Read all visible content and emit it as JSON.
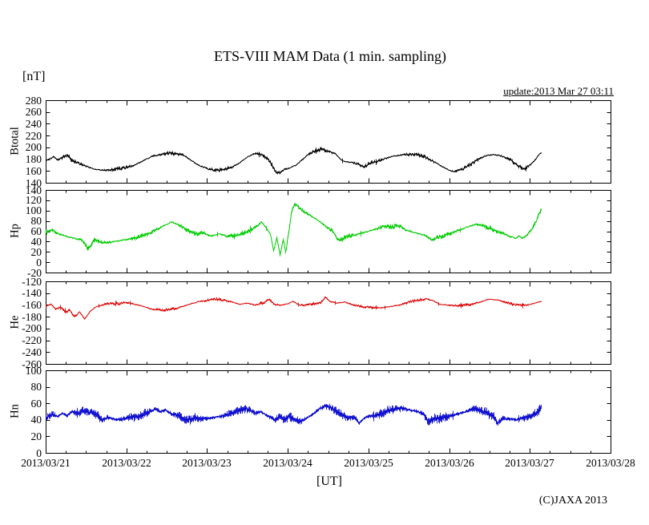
{
  "page": {
    "title": "ETS-VIII MAM Data (1 min. sampling)",
    "unit_label": "[nT]",
    "update_label": "update:2013 Mar 27 03:11",
    "x_axis_label": "[UT]",
    "copyright": "(C)JAXA 2013"
  },
  "chart_data": {
    "type": "line",
    "title": "ETS-VIII MAM Data (1 min. sampling)",
    "xlabel": "[UT]",
    "y_unit": "[nT]",
    "update": "update:2013 Mar 27 03:11",
    "grid": false,
    "x_tick_labels": [
      "2013/03/21",
      "2013/03/22",
      "2013/03/23",
      "2013/03/24",
      "2013/03/25",
      "2013/03/26",
      "2013/03/27",
      "2013/03/28"
    ],
    "x_range_days": [
      0,
      7
    ],
    "x_minor_tick_days": 0.25,
    "data_end_day": 6.132,
    "panels": [
      {
        "name": "Btotal",
        "color": "#000000",
        "ylim": [
          140,
          280
        ],
        "ytick_step": 20,
        "keypoints": [
          [
            0,
            178
          ],
          [
            0.05,
            181
          ],
          [
            0.1,
            184
          ],
          [
            0.15,
            178
          ],
          [
            0.22,
            184
          ],
          [
            0.28,
            186
          ],
          [
            0.33,
            176
          ],
          [
            0.4,
            173
          ],
          [
            0.5,
            168
          ],
          [
            0.6,
            163
          ],
          [
            0.7,
            161
          ],
          [
            0.8,
            162
          ],
          [
            0.9,
            164
          ],
          [
            1,
            166
          ],
          [
            1.1,
            170
          ],
          [
            1.2,
            177
          ],
          [
            1.3,
            184
          ],
          [
            1.4,
            188
          ],
          [
            1.5,
            190
          ],
          [
            1.6,
            189
          ],
          [
            1.7,
            187
          ],
          [
            1.8,
            178
          ],
          [
            1.9,
            169
          ],
          [
            2,
            164
          ],
          [
            2.1,
            161
          ],
          [
            2.2,
            162
          ],
          [
            2.3,
            166
          ],
          [
            2.4,
            174
          ],
          [
            2.5,
            184
          ],
          [
            2.6,
            190
          ],
          [
            2.7,
            186
          ],
          [
            2.75,
            180
          ],
          [
            2.8,
            170
          ],
          [
            2.85,
            159
          ],
          [
            2.9,
            156
          ],
          [
            2.95,
            163
          ],
          [
            3,
            164
          ],
          [
            3.1,
            170
          ],
          [
            3.2,
            182
          ],
          [
            3.3,
            192
          ],
          [
            3.4,
            197
          ],
          [
            3.5,
            193
          ],
          [
            3.6,
            188
          ],
          [
            3.65,
            179
          ],
          [
            3.7,
            176
          ],
          [
            3.8,
            174
          ],
          [
            3.9,
            170
          ],
          [
            3.95,
            167
          ],
          [
            4,
            172
          ],
          [
            4.1,
            176
          ],
          [
            4.2,
            181
          ],
          [
            4.3,
            185
          ],
          [
            4.45,
            188
          ],
          [
            4.6,
            187
          ],
          [
            4.7,
            184
          ],
          [
            4.8,
            176
          ],
          [
            4.9,
            168
          ],
          [
            5,
            161
          ],
          [
            5.05,
            159
          ],
          [
            5.15,
            162
          ],
          [
            5.25,
            170
          ],
          [
            5.35,
            179
          ],
          [
            5.45,
            186
          ],
          [
            5.55,
            188
          ],
          [
            5.65,
            185
          ],
          [
            5.75,
            180
          ],
          [
            5.85,
            168
          ],
          [
            5.92,
            163
          ],
          [
            6,
            170
          ],
          [
            6.05,
            177
          ],
          [
            6.1,
            186
          ],
          [
            6.13,
            191
          ]
        ]
      },
      {
        "name": "Hp",
        "color": "#00cc00",
        "ylim": [
          -20,
          140
        ],
        "ytick_step": 20,
        "keypoints": [
          [
            0,
            58
          ],
          [
            0.07,
            62
          ],
          [
            0.15,
            55
          ],
          [
            0.3,
            48
          ],
          [
            0.45,
            43
          ],
          [
            0.52,
            26
          ],
          [
            0.6,
            44
          ],
          [
            0.72,
            38
          ],
          [
            0.85,
            40
          ],
          [
            1,
            44
          ],
          [
            1.15,
            48
          ],
          [
            1.3,
            58
          ],
          [
            1.45,
            70
          ],
          [
            1.55,
            78
          ],
          [
            1.65,
            72
          ],
          [
            1.75,
            62
          ],
          [
            1.85,
            55
          ],
          [
            1.95,
            57
          ],
          [
            2.05,
            51
          ],
          [
            2.15,
            55
          ],
          [
            2.25,
            50
          ],
          [
            2.35,
            52
          ],
          [
            2.45,
            56
          ],
          [
            2.55,
            63
          ],
          [
            2.62,
            70
          ],
          [
            2.67,
            78
          ],
          [
            2.72,
            68
          ],
          [
            2.78,
            55
          ],
          [
            2.82,
            22
          ],
          [
            2.86,
            48
          ],
          [
            2.9,
            14
          ],
          [
            2.94,
            44
          ],
          [
            2.97,
            18
          ],
          [
            3,
            50
          ],
          [
            3.04,
            95
          ],
          [
            3.08,
            113
          ],
          [
            3.15,
            103
          ],
          [
            3.25,
            93
          ],
          [
            3.35,
            83
          ],
          [
            3.45,
            72
          ],
          [
            3.55,
            60
          ],
          [
            3.62,
            42
          ],
          [
            3.7,
            48
          ],
          [
            3.8,
            52
          ],
          [
            3.9,
            56
          ],
          [
            4,
            60
          ],
          [
            4.1,
            65
          ],
          [
            4.2,
            70
          ],
          [
            4.3,
            68
          ],
          [
            4.36,
            72
          ],
          [
            4.45,
            63
          ],
          [
            4.55,
            58
          ],
          [
            4.65,
            54
          ],
          [
            4.72,
            50
          ],
          [
            4.78,
            43
          ],
          [
            4.85,
            48
          ],
          [
            4.95,
            52
          ],
          [
            5.05,
            58
          ],
          [
            5.15,
            64
          ],
          [
            5.25,
            70
          ],
          [
            5.35,
            74
          ],
          [
            5.45,
            69
          ],
          [
            5.55,
            62
          ],
          [
            5.65,
            56
          ],
          [
            5.75,
            50
          ],
          [
            5.82,
            46
          ],
          [
            5.86,
            51
          ],
          [
            5.9,
            46
          ],
          [
            5.97,
            54
          ],
          [
            6.03,
            66
          ],
          [
            6.08,
            82
          ],
          [
            6.11,
            95
          ],
          [
            6.13,
            100
          ]
        ]
      },
      {
        "name": "He",
        "color": "#dd0000",
        "ylim": [
          -260,
          -120
        ],
        "ytick_step": 20,
        "keypoints": [
          [
            0,
            -162
          ],
          [
            0.06,
            -159
          ],
          [
            0.12,
            -167
          ],
          [
            0.18,
            -164
          ],
          [
            0.25,
            -172
          ],
          [
            0.3,
            -169
          ],
          [
            0.35,
            -180
          ],
          [
            0.42,
            -172
          ],
          [
            0.48,
            -184
          ],
          [
            0.55,
            -170
          ],
          [
            0.62,
            -163
          ],
          [
            0.7,
            -160
          ],
          [
            0.8,
            -157
          ],
          [
            0.9,
            -158
          ],
          [
            1,
            -156
          ],
          [
            1.1,
            -159
          ],
          [
            1.2,
            -162
          ],
          [
            1.3,
            -167
          ],
          [
            1.45,
            -169
          ],
          [
            1.6,
            -166
          ],
          [
            1.7,
            -162
          ],
          [
            1.8,
            -158
          ],
          [
            1.9,
            -154
          ],
          [
            2,
            -152
          ],
          [
            2.1,
            -150
          ],
          [
            2.2,
            -152
          ],
          [
            2.3,
            -155
          ],
          [
            2.4,
            -159
          ],
          [
            2.5,
            -157
          ],
          [
            2.6,
            -160
          ],
          [
            2.7,
            -156
          ],
          [
            2.76,
            -151
          ],
          [
            2.82,
            -158
          ],
          [
            2.9,
            -161
          ],
          [
            3,
            -158
          ],
          [
            3.06,
            -154
          ],
          [
            3.12,
            -159
          ],
          [
            3.2,
            -161
          ],
          [
            3.3,
            -159
          ],
          [
            3.4,
            -157
          ],
          [
            3.46,
            -146
          ],
          [
            3.52,
            -154
          ],
          [
            3.6,
            -157
          ],
          [
            3.7,
            -155
          ],
          [
            3.78,
            -159
          ],
          [
            3.88,
            -162
          ],
          [
            4,
            -164
          ],
          [
            4.1,
            -165
          ],
          [
            4.2,
            -164
          ],
          [
            4.3,
            -162
          ],
          [
            4.4,
            -159
          ],
          [
            4.5,
            -155
          ],
          [
            4.6,
            -152
          ],
          [
            4.72,
            -150
          ],
          [
            4.8,
            -153
          ],
          [
            4.88,
            -159
          ],
          [
            5,
            -161
          ],
          [
            5.1,
            -161
          ],
          [
            5.2,
            -160
          ],
          [
            5.3,
            -158
          ],
          [
            5.4,
            -154
          ],
          [
            5.5,
            -150
          ],
          [
            5.6,
            -152
          ],
          [
            5.7,
            -156
          ],
          [
            5.8,
            -159
          ],
          [
            5.9,
            -161
          ],
          [
            6,
            -159
          ],
          [
            6.06,
            -157
          ],
          [
            6.13,
            -154
          ]
        ]
      },
      {
        "name": "Hn",
        "color": "#0000cc",
        "ylim": [
          0,
          100
        ],
        "ytick_step": 20,
        "keypoints": [
          [
            0,
            42
          ],
          [
            0.08,
            47
          ],
          [
            0.14,
            44
          ],
          [
            0.2,
            48
          ],
          [
            0.26,
            45
          ],
          [
            0.32,
            50
          ],
          [
            0.4,
            48
          ],
          [
            0.46,
            52
          ],
          [
            0.52,
            49
          ],
          [
            0.58,
            50
          ],
          [
            0.64,
            45
          ],
          [
            0.7,
            39
          ],
          [
            0.76,
            43
          ],
          [
            0.84,
            41
          ],
          [
            0.92,
            40
          ],
          [
            1,
            42
          ],
          [
            1.1,
            44
          ],
          [
            1.2,
            46
          ],
          [
            1.3,
            51
          ],
          [
            1.36,
            53
          ],
          [
            1.42,
            50
          ],
          [
            1.48,
            52
          ],
          [
            1.56,
            47
          ],
          [
            1.64,
            45
          ],
          [
            1.7,
            42
          ],
          [
            1.76,
            40
          ],
          [
            1.84,
            43
          ],
          [
            1.92,
            41
          ],
          [
            2,
            42
          ],
          [
            2.1,
            43
          ],
          [
            2.2,
            45
          ],
          [
            2.3,
            48
          ],
          [
            2.4,
            52
          ],
          [
            2.46,
            54
          ],
          [
            2.54,
            51
          ],
          [
            2.6,
            48
          ],
          [
            2.66,
            50
          ],
          [
            2.72,
            46
          ],
          [
            2.78,
            43
          ],
          [
            2.84,
            40
          ],
          [
            2.9,
            44
          ],
          [
            2.96,
            41
          ],
          [
            3.02,
            44
          ],
          [
            3.1,
            40
          ],
          [
            3.16,
            38
          ],
          [
            3.24,
            43
          ],
          [
            3.32,
            48
          ],
          [
            3.4,
            54
          ],
          [
            3.46,
            57
          ],
          [
            3.52,
            55
          ],
          [
            3.6,
            50
          ],
          [
            3.68,
            45
          ],
          [
            3.76,
            42
          ],
          [
            3.82,
            44
          ],
          [
            3.88,
            36
          ],
          [
            3.94,
            42
          ],
          [
            4,
            44
          ],
          [
            4.1,
            46
          ],
          [
            4.2,
            50
          ],
          [
            4.3,
            53
          ],
          [
            4.4,
            54
          ],
          [
            4.5,
            52
          ],
          [
            4.6,
            50
          ],
          [
            4.68,
            47
          ],
          [
            4.74,
            36
          ],
          [
            4.8,
            42
          ],
          [
            4.9,
            42
          ],
          [
            5,
            44
          ],
          [
            5.1,
            47
          ],
          [
            5.2,
            50
          ],
          [
            5.3,
            54
          ],
          [
            5.38,
            51
          ],
          [
            5.46,
            49
          ],
          [
            5.54,
            45
          ],
          [
            5.6,
            36
          ],
          [
            5.66,
            42
          ],
          [
            5.74,
            41
          ],
          [
            5.82,
            40
          ],
          [
            5.9,
            42
          ],
          [
            6,
            44
          ],
          [
            6.06,
            47
          ],
          [
            6.11,
            51
          ],
          [
            6.13,
            55
          ]
        ]
      }
    ]
  }
}
